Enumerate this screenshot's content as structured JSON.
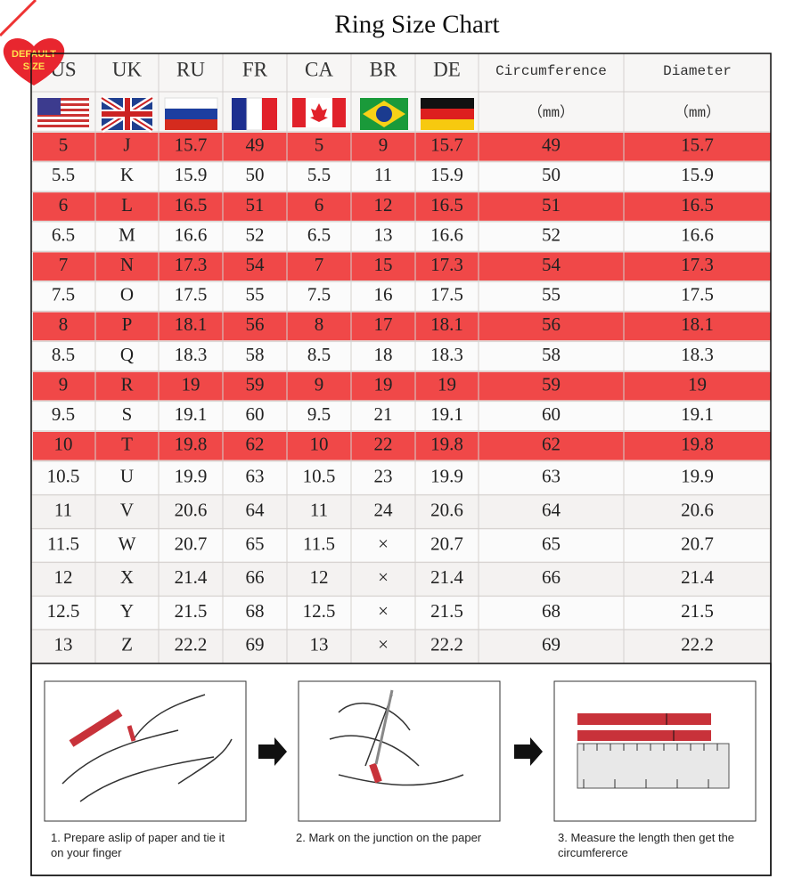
{
  "title": "Ring  Size Chart",
  "badge": {
    "lines": [
      "DEFAULT",
      "SIZE"
    ]
  },
  "table": {
    "header": [
      "US",
      "UK",
      "RU",
      "FR",
      "CA",
      "BR",
      "DE",
      "Circumference",
      "Diameter"
    ],
    "units": {
      "circumference": "（mm）",
      "diameter": "（mm）"
    },
    "rows": [
      [
        "5",
        "J",
        "15.7",
        "49",
        "5",
        "9",
        "15.7",
        "49",
        "15.7"
      ],
      [
        "5.5",
        "K",
        "15.9",
        "50",
        "5.5",
        "11",
        "15.9",
        "50",
        "15.9"
      ],
      [
        "6",
        "L",
        "16.5",
        "51",
        "6",
        "12",
        "16.5",
        "51",
        "16.5"
      ],
      [
        "6.5",
        "M",
        "16.6",
        "52",
        "6.5",
        "13",
        "16.6",
        "52",
        "16.6"
      ],
      [
        "7",
        "N",
        "17.3",
        "54",
        "7",
        "15",
        "17.3",
        "54",
        "17.3"
      ],
      [
        "7.5",
        "O",
        "17.5",
        "55",
        "7.5",
        "16",
        "17.5",
        "55",
        "17.5"
      ],
      [
        "8",
        "P",
        "18.1",
        "56",
        "8",
        "17",
        "18.1",
        "56",
        "18.1"
      ],
      [
        "8.5",
        "Q",
        "18.3",
        "58",
        "8.5",
        "18",
        "18.3",
        "58",
        "18.3"
      ],
      [
        "9",
        "R",
        "19",
        "59",
        "9",
        "19",
        "19",
        "59",
        "19"
      ],
      [
        "9.5",
        "S",
        "19.1",
        "60",
        "9.5",
        "21",
        "19.1",
        "60",
        "19.1"
      ],
      [
        "10",
        "T",
        "19.8",
        "62",
        "10",
        "22",
        "19.8",
        "62",
        "19.8"
      ],
      [
        "10.5",
        "U",
        "19.9",
        "63",
        "10.5",
        "23",
        "19.9",
        "63",
        "19.9"
      ],
      [
        "11",
        "V",
        "20.6",
        "64",
        "11",
        "24",
        "20.6",
        "64",
        "20.6"
      ],
      [
        "11.5",
        "W",
        "20.7",
        "65",
        "11.5",
        "×",
        "20.7",
        "65",
        "20.7"
      ],
      [
        "12",
        "X",
        "21.4",
        "66",
        "12",
        "×",
        "21.4",
        "66",
        "21.4"
      ],
      [
        "12.5",
        "Y",
        "21.5",
        "68",
        "12.5",
        "×",
        "21.5",
        "68",
        "21.5"
      ],
      [
        "13",
        "Z",
        "22.2",
        "69",
        "13",
        "×",
        "22.2",
        "69",
        "22.2"
      ]
    ]
  },
  "steps": [
    {
      "lines": [
        "1. Prepare aslip of paper and tie it",
        "on your finger"
      ]
    },
    {
      "lines": [
        "2. Mark on the junction on the paper"
      ]
    },
    {
      "lines": [
        "3. Measure the length then get the",
        "circumfererce"
      ]
    }
  ]
}
